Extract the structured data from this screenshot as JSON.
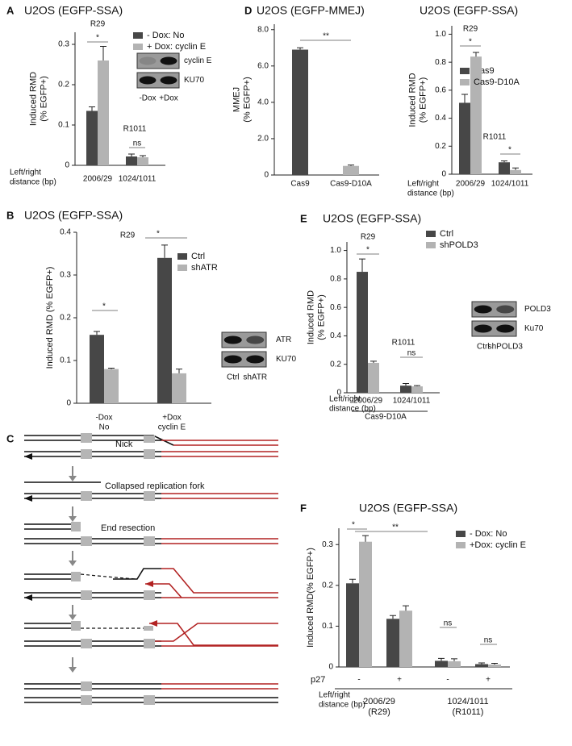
{
  "chart_data": [
    {
      "type": "bar",
      "panel": "A",
      "title": "U2OS (EGFP-SSA)",
      "ylabel": [
        "Induced RMD",
        "(% EGFP+)"
      ],
      "categories": [
        "2006/29",
        "1024/1011"
      ],
      "series": [
        {
          "name": "- Dox: No",
          "color": "#474747",
          "values": [
            0.135,
            0.022
          ],
          "errors": [
            0.01,
            0.006
          ]
        },
        {
          "name": "+ Dox: cyclin E",
          "color": "#b3b3b3",
          "values": [
            0.26,
            0.02
          ],
          "errors": [
            0.035,
            0.004
          ]
        }
      ],
      "ylim": [
        0,
        0.33
      ],
      "yticks": [
        0,
        0.1,
        0.2,
        0.3
      ],
      "xlabel_lines": [
        "Left/right",
        "distance (bp)"
      ],
      "annotations": [
        "R29",
        "*",
        "R1011",
        "ns"
      ],
      "blot": {
        "labels": [
          "cyclin E",
          "KU70"
        ],
        "lanes": [
          "-Dox",
          "+Dox"
        ]
      }
    },
    {
      "type": "bar",
      "panel": "D",
      "title": "U2OS (EGFP-MMEJ)",
      "ylabel": [
        "MMEJ",
        "(% EGFP+)"
      ],
      "categories": [
        "Cas9",
        "Cas9-D10A"
      ],
      "values": [
        6.9,
        0.5
      ],
      "errors": [
        0.1,
        0.05
      ],
      "colors": [
        "#474747",
        "#b3b3b3"
      ],
      "ylim": [
        0,
        8.3
      ],
      "yticks": [
        0,
        {
          "value": 2,
          "label": "2.0"
        },
        {
          "value": 4,
          "label": "4.0"
        },
        {
          "value": 6,
          "label": "6.0"
        },
        {
          "value": 8,
          "label": "8.0"
        }
      ],
      "annotations": [
        "**"
      ]
    },
    {
      "type": "bar",
      "title": "U2OS (EGFP-SSA)",
      "ylabel": [
        "Induced RMD",
        "(% EGFP+)"
      ],
      "categories": [
        "2006/29",
        "1024/1011"
      ],
      "series": [
        {
          "name": "Cas9",
          "color": "#474747",
          "values": [
            0.51,
            0.085
          ],
          "errors": [
            0.06,
            0.01
          ]
        },
        {
          "name": "Cas9-D10A",
          "color": "#b3b3b3",
          "values": [
            0.84,
            0.03
          ],
          "errors": [
            0.03,
            0.015
          ]
        }
      ],
      "ylim": [
        0,
        1.06
      ],
      "yticks": [
        0,
        0.2,
        0.4,
        0.6,
        0.8,
        {
          "value": 1,
          "label": "1.0"
        }
      ],
      "xlabel_lines": [
        "Left/right",
        "distance (bp)"
      ],
      "annotations": [
        "R29",
        "*",
        "R1011",
        "*"
      ]
    },
    {
      "type": "bar",
      "panel": "B",
      "title": "U2OS (EGFP-SSA)",
      "ylabel": [
        "Induced RMD (% EGFP+)"
      ],
      "categories": [
        "-Dox",
        "+Dox"
      ],
      "category_sublabels": [
        "No",
        "cyclin E"
      ],
      "series": [
        {
          "name": "Ctrl",
          "color": "#474747",
          "values": [
            0.16,
            0.34
          ],
          "errors": [
            0.008,
            0.03
          ]
        },
        {
          "name": "shATR",
          "color": "#b3b3b3",
          "values": [
            0.08,
            0.07
          ],
          "errors": [
            0.002,
            0.01
          ]
        }
      ],
      "ylim": [
        0,
        0.4
      ],
      "yticks": [
        0,
        0.1,
        0.2,
        0.3,
        0.4
      ],
      "annotations": [
        "R29",
        "*",
        "*"
      ],
      "blot": {
        "labels": [
          "ATR",
          "KU70"
        ],
        "lanes": [
          "Ctrl",
          "shATR"
        ]
      }
    },
    {
      "type": "bar",
      "panel": "E",
      "title": "U2OS (EGFP-SSA)",
      "ylabel": [
        "Induced RMD",
        "(% EGFP+)"
      ],
      "categories": [
        "2006/29",
        "1024/1011"
      ],
      "series": [
        {
          "name": "Ctrl",
          "color": "#474747",
          "values": [
            0.85,
            0.05
          ],
          "errors": [
            0.09,
            0.015
          ]
        },
        {
          "name": "shPOLD3",
          "color": "#b3b3b3",
          "values": [
            0.21,
            0.045
          ],
          "errors": [
            0.012,
            0.005
          ]
        }
      ],
      "ylim": [
        0,
        1.06
      ],
      "yticks": [
        0,
        0.2,
        0.4,
        0.6,
        0.8,
        {
          "value": 1,
          "label": "1.0"
        }
      ],
      "xlabel_lines": [
        "Left/right",
        "distance (bp)"
      ],
      "footnote": "Cas9-D10A",
      "annotations": [
        "R29",
        "*",
        "R1011",
        "ns"
      ],
      "blot": {
        "labels": [
          "POLD3",
          "Ku70"
        ],
        "lanes": [
          "Ctrl",
          "shPOLD3"
        ]
      }
    },
    {
      "type": "bar",
      "panel": "F",
      "title": "U2OS (EGFP-SSA)",
      "ylabel": [
        "Induced RMD(% EGFP+)"
      ],
      "x_label": "p27",
      "categories": [
        "-",
        "+",
        "-",
        "+"
      ],
      "groups": [
        {
          "label": "2006/29",
          "sublabel": "(R29)"
        },
        {
          "label": "1024/1011",
          "sublabel": "(R1011)"
        }
      ],
      "series": [
        {
          "name": "- Dox: No",
          "color": "#474747",
          "values": [
            0.205,
            0.118,
            0.015,
            0.007
          ],
          "errors": [
            0.01,
            0.008,
            0.006,
            0.003
          ]
        },
        {
          "name": "+Dox: cyclin E",
          "color": "#b3b3b3",
          "values": [
            0.307,
            0.138,
            0.014,
            0.006
          ],
          "errors": [
            0.015,
            0.012,
            0.006,
            0.003
          ]
        }
      ],
      "ylim": [
        0,
        0.34
      ],
      "yticks": [
        0,
        0.1,
        0.2,
        0.3
      ],
      "xlabel_lines": [
        "Left/right",
        "distance (bp)"
      ],
      "annotations": [
        "*",
        "**",
        "ns",
        "ns"
      ]
    }
  ],
  "diagram": {
    "panel": "C",
    "labels": [
      "Nick",
      "Collapsed replication fork",
      "End resection"
    ]
  }
}
